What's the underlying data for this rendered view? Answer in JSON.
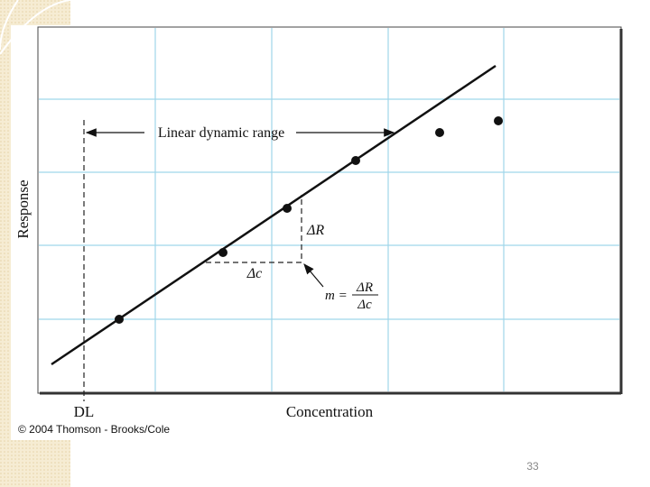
{
  "figure": {
    "y_label": "Response",
    "x_label": "Concentration",
    "dl_label": "DL",
    "range_label": "Linear dynamic range",
    "delta_r": "ΔR",
    "delta_c": "Δc",
    "slope": {
      "lhs": "m =",
      "numerator": "ΔR",
      "denominator": "Δc"
    }
  },
  "credit": "© 2004 Thomson - Brooks/Cole",
  "page_number": "33"
}
